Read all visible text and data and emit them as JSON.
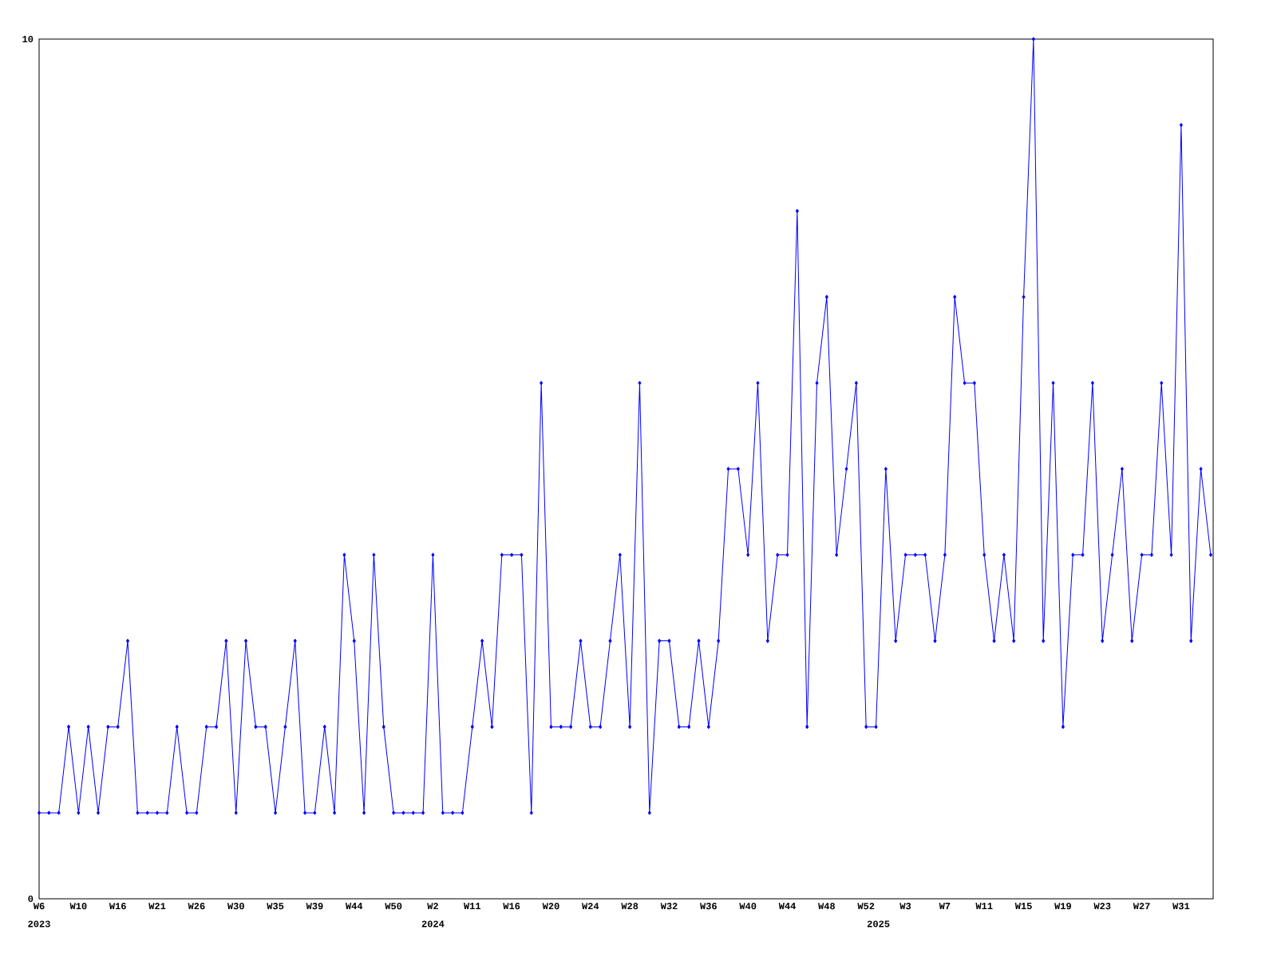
{
  "chart_data": {
    "type": "line",
    "color": "#0000ff",
    "marker": "diamond",
    "line_style": "solid",
    "grid": false,
    "categories": [
      "W6",
      null,
      null,
      null,
      "W10",
      null,
      null,
      null,
      "W16",
      null,
      null,
      null,
      "W21",
      null,
      null,
      null,
      "W26",
      null,
      null,
      null,
      "W30",
      null,
      null,
      null,
      "W35",
      null,
      null,
      null,
      "W39",
      null,
      null,
      null,
      "W44",
      null,
      null,
      null,
      "W50",
      null,
      null,
      null,
      "W2",
      null,
      null,
      null,
      "W11",
      null,
      null,
      null,
      "W16",
      null,
      null,
      null,
      "W20",
      null,
      null,
      null,
      "W24",
      null,
      null,
      null,
      "W28",
      null,
      null,
      null,
      "W32",
      null,
      null,
      null,
      "W36",
      null,
      null,
      null,
      "W40",
      null,
      null,
      null,
      "W44",
      null,
      null,
      null,
      "W48",
      null,
      null,
      null,
      "W52",
      null,
      null,
      null,
      "W3",
      null,
      null,
      null,
      "W7",
      null,
      null,
      null,
      "W11",
      null,
      null,
      null,
      "W15",
      null,
      null,
      null,
      "W19",
      null,
      null,
      null,
      "W23",
      null,
      null,
      null,
      "W27",
      null,
      null,
      null,
      "W31",
      null,
      null,
      null
    ],
    "values": [
      1,
      1,
      1,
      2,
      1,
      2,
      1,
      2,
      2,
      3,
      1,
      1,
      1,
      1,
      2,
      1,
      1,
      2,
      2,
      3,
      1,
      3,
      2,
      2,
      1,
      2,
      3,
      1,
      1,
      2,
      1,
      4,
      3,
      1,
      4,
      2,
      1,
      1,
      1,
      1,
      4,
      1,
      1,
      1,
      2,
      3,
      2,
      4,
      4,
      4,
      1,
      6,
      2,
      2,
      2,
      3,
      2,
      2,
      3,
      4,
      2,
      6,
      1,
      3,
      3,
      2,
      2,
      3,
      2,
      3,
      5,
      5,
      4,
      6,
      3,
      4,
      4,
      8,
      2,
      6,
      7,
      4,
      5,
      6,
      2,
      2,
      5,
      3,
      4,
      4,
      4,
      3,
      4,
      7,
      6,
      6,
      4,
      3,
      4,
      3,
      7,
      10,
      3,
      6,
      2,
      4,
      4,
      6,
      3,
      4,
      5,
      3,
      4,
      4,
      6,
      4,
      9,
      3,
      5,
      4
    ],
    "ylim": [
      0,
      10
    ],
    "yticks": [
      0,
      10
    ],
    "annotations": [
      "2023",
      "2024",
      "2025"
    ]
  }
}
